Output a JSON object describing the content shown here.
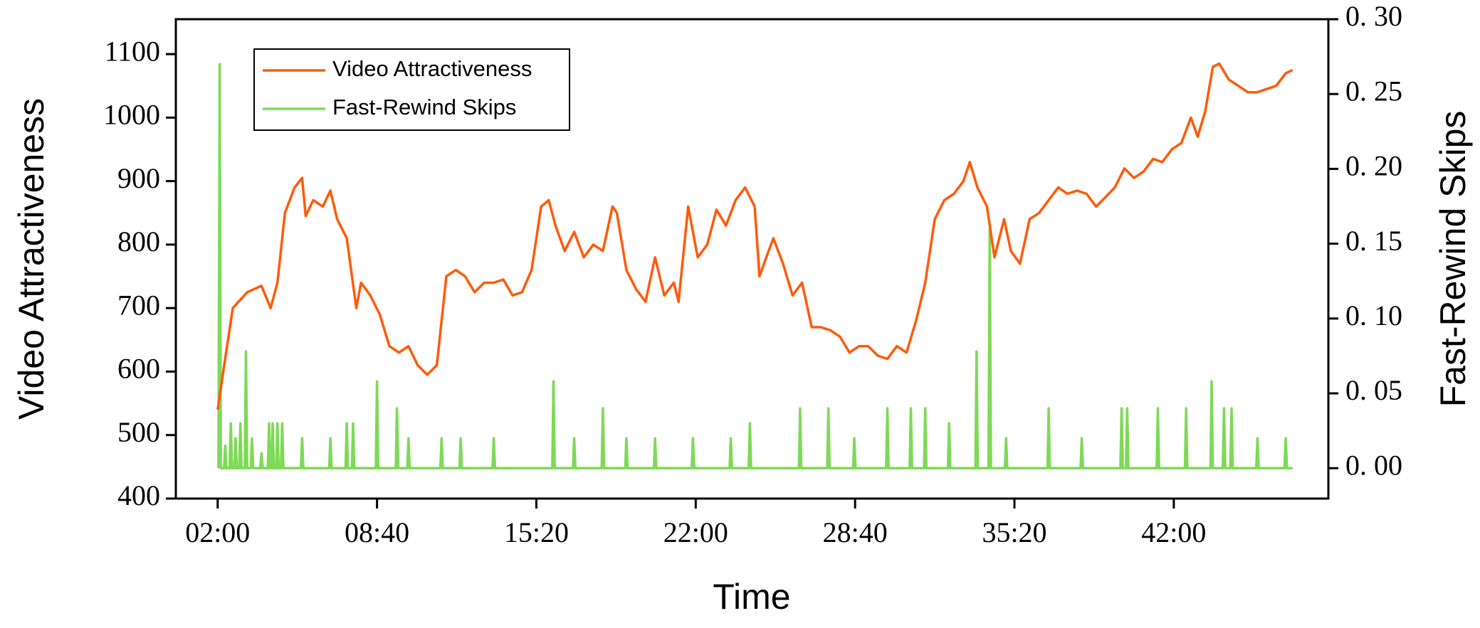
{
  "chart_data": {
    "type": "line",
    "xlabel": "Time",
    "ylabel": "Video Attractiveness",
    "y2label": "Fast-Rewind Skips",
    "xlim": [
      15,
      2908
    ],
    "xticks": [
      {
        "value": 120,
        "label": "02:00"
      },
      {
        "value": 520,
        "label": "08:40"
      },
      {
        "value": 920,
        "label": "15:20"
      },
      {
        "value": 1320,
        "label": "22:00"
      },
      {
        "value": 1720,
        "label": "28:40"
      },
      {
        "value": 2120,
        "label": "35:20"
      },
      {
        "value": 2520,
        "label": "42:00"
      }
    ],
    "ylim": [
      400,
      1155
    ],
    "yticks": [
      400,
      500,
      600,
      700,
      800,
      900,
      1000,
      1100
    ],
    "y2lim": [
      -0.0203,
      0.3
    ],
    "y2ticks": [
      {
        "value": 0,
        "label": "0. 00"
      },
      {
        "value": 0.05,
        "label": "0. 05"
      },
      {
        "value": 0.1,
        "label": "0. 10"
      },
      {
        "value": 0.15,
        "label": "0. 15"
      },
      {
        "value": 0.2,
        "label": "0. 20"
      },
      {
        "value": 0.25,
        "label": "0. 25"
      },
      {
        "value": 0.3,
        "label": "0. 30"
      }
    ],
    "legend": "upper left",
    "series": [
      {
        "name": "Video Attractiveness",
        "color": "#ff5a0a",
        "x": [
          120,
          134,
          158,
          194,
          230,
          253,
          270,
          289,
          313,
          332,
          341,
          360,
          384,
          403,
          420,
          444,
          468,
          480,
          503,
          527,
          551,
          575,
          599,
          622,
          646,
          670,
          694,
          718,
          741,
          765,
          789,
          813,
          837,
          860,
          884,
          908,
          932,
          951,
          968,
          991,
          1015,
          1039,
          1063,
          1087,
          1111,
          1122,
          1146,
          1170,
          1194,
          1218,
          1241,
          1265,
          1277,
          1301,
          1325,
          1349,
          1372,
          1396,
          1420,
          1444,
          1468,
          1480,
          1503,
          1515,
          1539,
          1563,
          1587,
          1611,
          1634,
          1658,
          1682,
          1706,
          1730,
          1753,
          1777,
          1801,
          1825,
          1849,
          1873,
          1896,
          1920,
          1944,
          1968,
          1992,
          2008,
          2027,
          2051,
          2070,
          2094,
          2111,
          2134,
          2158,
          2182,
          2206,
          2230,
          2253,
          2277,
          2301,
          2325,
          2349,
          2372,
          2396,
          2420,
          2444,
          2468,
          2491,
          2515,
          2539,
          2563,
          2580,
          2599,
          2618,
          2634,
          2658,
          2682,
          2706,
          2730,
          2753,
          2777,
          2801,
          2818
        ],
        "values": [
          540,
          600,
          700,
          725,
          735,
          700,
          740,
          850,
          890,
          905,
          845,
          870,
          860,
          885,
          840,
          810,
          700,
          740,
          720,
          690,
          640,
          630,
          640,
          610,
          595,
          610,
          750,
          760,
          750,
          725,
          740,
          740,
          745,
          720,
          725,
          760,
          860,
          870,
          830,
          790,
          820,
          780,
          800,
          790,
          860,
          850,
          760,
          730,
          710,
          780,
          720,
          740,
          710,
          860,
          780,
          800,
          855,
          830,
          870,
          890,
          860,
          750,
          790,
          810,
          770,
          720,
          740,
          670,
          670,
          665,
          655,
          630,
          640,
          640,
          625,
          620,
          640,
          630,
          680,
          740,
          840,
          870,
          880,
          900,
          930,
          890,
          860,
          780,
          840,
          790,
          770,
          840,
          850,
          870,
          890,
          880,
          885,
          880,
          860,
          875,
          890,
          920,
          905,
          915,
          935,
          930,
          950,
          960,
          1000,
          970,
          1010,
          1080,
          1085,
          1060,
          1050,
          1040,
          1040,
          1045,
          1050,
          1070,
          1075
        ]
      },
      {
        "name": "Fast-Rewind Skips",
        "color": "#7ed957",
        "axis": "y2",
        "x": [
          122,
          125,
          128,
          136,
          139,
          142,
          150,
          153,
          156,
          162,
          165,
          168,
          174,
          177,
          180,
          188,
          191,
          194,
          203,
          206,
          209,
          227,
          230,
          233,
          246,
          249,
          252,
          255,
          258,
          261,
          267,
          270,
          273,
          279,
          282,
          285,
          329,
          332,
          335,
          400,
          403,
          406,
          441,
          444,
          447,
          457,
          460,
          463,
          517,
          520,
          523,
          567,
          570,
          573,
          596,
          599,
          602,
          679,
          682,
          685,
          727,
          730,
          733,
          810,
          813,
          816,
          960,
          963,
          966,
          1012,
          1015,
          1018,
          1084,
          1087,
          1090,
          1143,
          1146,
          1149,
          1215,
          1218,
          1221,
          1310,
          1313,
          1316,
          1405,
          1408,
          1411,
          1453,
          1456,
          1459,
          1579,
          1582,
          1585,
          1650,
          1653,
          1656,
          1715,
          1718,
          1721,
          1798,
          1801,
          1804,
          1857,
          1860,
          1863,
          1893,
          1896,
          1899,
          1953,
          1956,
          1959,
          2022,
          2025,
          2028,
          2055,
          2058,
          2061,
          2096,
          2099,
          2102,
          2203,
          2206,
          2209,
          2286,
          2289,
          2292,
          2386,
          2389,
          2392,
          2400,
          2403,
          2406,
          2477,
          2480,
          2483,
          2548,
          2551,
          2554,
          2612,
          2615,
          2618,
          2643,
          2646,
          2649,
          2662,
          2665,
          2668,
          2727,
          2730,
          2733,
          2798,
          2801,
          2804,
          2818
        ],
        "values": [
          0,
          0.27,
          0,
          0,
          0.015,
          0,
          0,
          0.03,
          0,
          0,
          0.02,
          0,
          0,
          0.03,
          0,
          0,
          0.078,
          0,
          0,
          0.02,
          0,
          0,
          0.01,
          0,
          0,
          0.03,
          0,
          0,
          0.03,
          0,
          0,
          0.03,
          0,
          0,
          0.03,
          0,
          0,
          0.02,
          0,
          0,
          0.02,
          0,
          0,
          0.03,
          0,
          0,
          0.03,
          0,
          0,
          0.058,
          0,
          0,
          0.04,
          0,
          0,
          0.02,
          0,
          0,
          0.02,
          0,
          0,
          0.02,
          0,
          0,
          0.02,
          0,
          0,
          0.058,
          0,
          0,
          0.02,
          0,
          0,
          0.04,
          0,
          0,
          0.02,
          0,
          0,
          0.02,
          0,
          0,
          0.02,
          0,
          0,
          0.02,
          0,
          0,
          0.03,
          0,
          0,
          0.04,
          0,
          0,
          0.04,
          0,
          0,
          0.02,
          0,
          0,
          0.04,
          0,
          0,
          0.04,
          0,
          0,
          0.04,
          0,
          0,
          0.03,
          0,
          0,
          0.078,
          0,
          0,
          0.16,
          0,
          0,
          0.02,
          0,
          0,
          0.04,
          0,
          0,
          0.02,
          0,
          0,
          0.04,
          0,
          0,
          0.04,
          0,
          0,
          0.04,
          0,
          0,
          0.04,
          0,
          0,
          0.058,
          0,
          0,
          0.04,
          0,
          0,
          0.04,
          0,
          0,
          0.02,
          0,
          0,
          0.02,
          0,
          0
        ]
      }
    ]
  }
}
